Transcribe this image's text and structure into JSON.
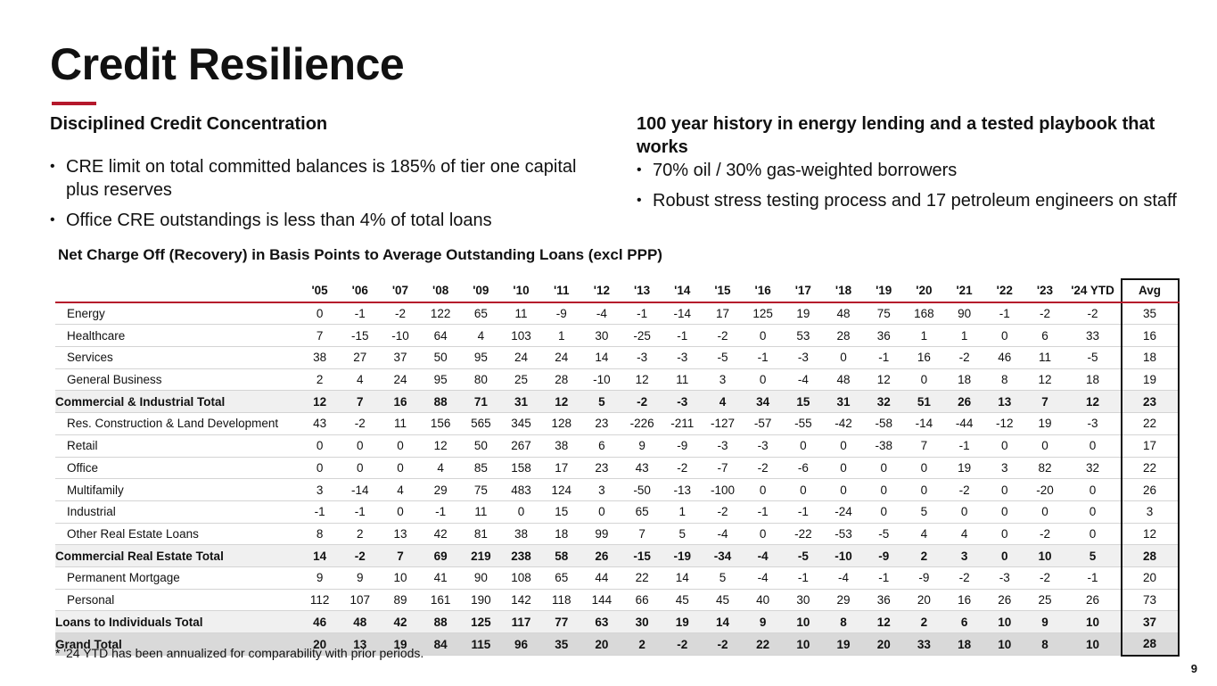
{
  "title": "Credit Resilience",
  "left": {
    "heading": "Disciplined Credit Concentration",
    "bullets": [
      "CRE limit on total committed balances is 185% of tier one capital plus reserves",
      "Office CRE outstandings is less than 4% of total loans"
    ]
  },
  "right": {
    "heading": "100 year history in energy lending and a tested playbook that works",
    "bullets": [
      "70% oil / 30% gas-weighted borrowers",
      "Robust stress testing process and 17 petroleum engineers on staff"
    ]
  },
  "table": {
    "title": "Net Charge Off (Recovery) in Basis Points to Average Outstanding Loans (excl PPP)",
    "columns": [
      "'05",
      "'06",
      "'07",
      "'08",
      "'09",
      "'10",
      "'11",
      "'12",
      "'13",
      "'14",
      "'15",
      "'16",
      "'17",
      "'18",
      "'19",
      "'20",
      "'21",
      "'22",
      "'23",
      "'24 YTD",
      "Avg"
    ],
    "rows": [
      {
        "label": "Energy",
        "type": "item",
        "values": [
          "0",
          "-1",
          "-2",
          "122",
          "65",
          "11",
          "-9",
          "-4",
          "-1",
          "-14",
          "17",
          "125",
          "19",
          "48",
          "75",
          "168",
          "90",
          "-1",
          "-2",
          "-2",
          "35"
        ]
      },
      {
        "label": "Healthcare",
        "type": "item",
        "values": [
          "7",
          "-15",
          "-10",
          "64",
          "4",
          "103",
          "1",
          "30",
          "-25",
          "-1",
          "-2",
          "0",
          "53",
          "28",
          "36",
          "1",
          "1",
          "0",
          "6",
          "33",
          "16"
        ]
      },
      {
        "label": "Services",
        "type": "item",
        "values": [
          "38",
          "27",
          "37",
          "50",
          "95",
          "24",
          "24",
          "14",
          "-3",
          "-3",
          "-5",
          "-1",
          "-3",
          "0",
          "-1",
          "16",
          "-2",
          "46",
          "11",
          "-5",
          "18"
        ]
      },
      {
        "label": "General Business",
        "type": "item",
        "values": [
          "2",
          "4",
          "24",
          "95",
          "80",
          "25",
          "28",
          "-10",
          "12",
          "11",
          "3",
          "0",
          "-4",
          "48",
          "12",
          "0",
          "18",
          "8",
          "12",
          "18",
          "19"
        ]
      },
      {
        "label": "Commercial & Industrial Total",
        "type": "subtotal",
        "values": [
          "12",
          "7",
          "16",
          "88",
          "71",
          "31",
          "12",
          "5",
          "-2",
          "-3",
          "4",
          "34",
          "15",
          "31",
          "32",
          "51",
          "26",
          "13",
          "7",
          "12",
          "23"
        ]
      },
      {
        "label": "Res. Construction & Land Development",
        "type": "item",
        "values": [
          "43",
          "-2",
          "11",
          "156",
          "565",
          "345",
          "128",
          "23",
          "-226",
          "-211",
          "-127",
          "-57",
          "-55",
          "-42",
          "-58",
          "-14",
          "-44",
          "-12",
          "19",
          "-3",
          "22"
        ]
      },
      {
        "label": "Retail",
        "type": "item",
        "values": [
          "0",
          "0",
          "0",
          "12",
          "50",
          "267",
          "38",
          "6",
          "9",
          "-9",
          "-3",
          "-3",
          "0",
          "0",
          "-38",
          "7",
          "-1",
          "0",
          "0",
          "0",
          "17"
        ]
      },
      {
        "label": "Office",
        "type": "item",
        "values": [
          "0",
          "0",
          "0",
          "4",
          "85",
          "158",
          "17",
          "23",
          "43",
          "-2",
          "-7",
          "-2",
          "-6",
          "0",
          "0",
          "0",
          "19",
          "3",
          "82",
          "32",
          "22"
        ]
      },
      {
        "label": "Multifamily",
        "type": "item",
        "values": [
          "3",
          "-14",
          "4",
          "29",
          "75",
          "483",
          "124",
          "3",
          "-50",
          "-13",
          "-100",
          "0",
          "0",
          "0",
          "0",
          "0",
          "-2",
          "0",
          "-20",
          "0",
          "26"
        ]
      },
      {
        "label": "Industrial",
        "type": "item",
        "values": [
          "-1",
          "-1",
          "0",
          "-1",
          "11",
          "0",
          "15",
          "0",
          "65",
          "1",
          "-2",
          "-1",
          "-1",
          "-24",
          "0",
          "5",
          "0",
          "0",
          "0",
          "0",
          "3"
        ]
      },
      {
        "label": "Other Real Estate Loans",
        "type": "item",
        "values": [
          "8",
          "2",
          "13",
          "42",
          "81",
          "38",
          "18",
          "99",
          "7",
          "5",
          "-4",
          "0",
          "-22",
          "-53",
          "-5",
          "4",
          "4",
          "0",
          "-2",
          "0",
          "12"
        ]
      },
      {
        "label": "Commercial Real Estate Total",
        "type": "subtotal",
        "values": [
          "14",
          "-2",
          "7",
          "69",
          "219",
          "238",
          "58",
          "26",
          "-15",
          "-19",
          "-34",
          "-4",
          "-5",
          "-10",
          "-9",
          "2",
          "3",
          "0",
          "10",
          "5",
          "28"
        ]
      },
      {
        "label": "Permanent Mortgage",
        "type": "item",
        "values": [
          "9",
          "9",
          "10",
          "41",
          "90",
          "108",
          "65",
          "44",
          "22",
          "14",
          "5",
          "-4",
          "-1",
          "-4",
          "-1",
          "-9",
          "-2",
          "-3",
          "-2",
          "-1",
          "20"
        ]
      },
      {
        "label": "Personal",
        "type": "item",
        "values": [
          "112",
          "107",
          "89",
          "161",
          "190",
          "142",
          "118",
          "144",
          "66",
          "45",
          "45",
          "40",
          "30",
          "29",
          "36",
          "20",
          "16",
          "26",
          "25",
          "26",
          "73"
        ]
      },
      {
        "label": "Loans to Individuals Total",
        "type": "subtotal",
        "values": [
          "46",
          "48",
          "42",
          "88",
          "125",
          "117",
          "77",
          "63",
          "30",
          "19",
          "14",
          "9",
          "10",
          "8",
          "12",
          "2",
          "6",
          "10",
          "9",
          "10",
          "37"
        ]
      },
      {
        "label": "Grand Total",
        "type": "grand",
        "values": [
          "20",
          "13",
          "19",
          "84",
          "115",
          "96",
          "35",
          "20",
          "2",
          "-2",
          "-2",
          "22",
          "10",
          "19",
          "20",
          "33",
          "18",
          "10",
          "8",
          "10",
          "28"
        ]
      }
    ]
  },
  "footnote": "* '24 YTD has been annualized for comparability with prior periods.",
  "page_number": "9",
  "colors": {
    "accent": "#b5182b",
    "subtotal_bg": "#f0f0f0",
    "grand_bg": "#d9d9d9"
  }
}
